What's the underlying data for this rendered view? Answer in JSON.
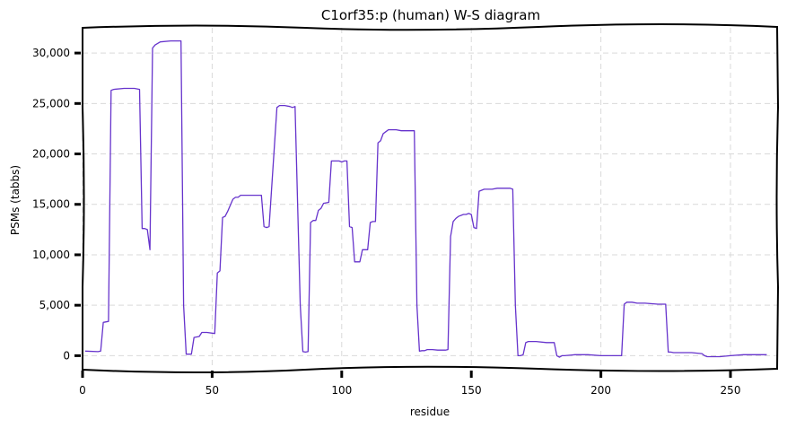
{
  "chart_data": {
    "type": "line",
    "title": "C1orf35:p (human) W-S diagram",
    "xlabel": "residue",
    "ylabel": "PSMs (tabbs)",
    "xlim": [
      0,
      268
    ],
    "ylim": [
      -1300,
      32500
    ],
    "xticks": [
      0,
      50,
      100,
      150,
      200,
      250
    ],
    "xtick_labels": [
      "0",
      "50",
      "100",
      "150",
      "200",
      "250"
    ],
    "yticks": [
      0,
      5000,
      10000,
      15000,
      20000,
      25000,
      30000
    ],
    "ytick_labels": [
      "0",
      "5,000",
      "10,000",
      "15,000",
      "20,000",
      "25,000",
      "30,000"
    ],
    "grid": true,
    "legend": "none",
    "color": "#6633cc",
    "series": [
      {
        "x": [
          1,
          6,
          7,
          8,
          10,
          11,
          12,
          16,
          20,
          22,
          23,
          24,
          25,
          26,
          27,
          28,
          30,
          34,
          37,
          38,
          39,
          40,
          41,
          42,
          43,
          45,
          46,
          48,
          51,
          52,
          53,
          54,
          55,
          56,
          58,
          59,
          60,
          61,
          65,
          69,
          70,
          71,
          72,
          75,
          76,
          77,
          78,
          80,
          81,
          82,
          84,
          85,
          86,
          87,
          88,
          89,
          90,
          91,
          92,
          93,
          95,
          96,
          97,
          98,
          99,
          100,
          101,
          102,
          103,
          104,
          105,
          106,
          107,
          108,
          109,
          110,
          111,
          112,
          113,
          114,
          115,
          116,
          117,
          118,
          119,
          121,
          123,
          124,
          126,
          128,
          129,
          130,
          131,
          132,
          133,
          135,
          137,
          139,
          140,
          141,
          142,
          143,
          144,
          145,
          147,
          148,
          149,
          150,
          151,
          152,
          153,
          155,
          158,
          160,
          163,
          165,
          166,
          167,
          168,
          169,
          170,
          171,
          172,
          175,
          179,
          182,
          183,
          184,
          185,
          186,
          190,
          195,
          200,
          205,
          208,
          209,
          210,
          211,
          212,
          214,
          217,
          222,
          225,
          226,
          227,
          228,
          231,
          235,
          239,
          240,
          241,
          242,
          246,
          250,
          255,
          260,
          264
        ],
        "y": [
          450,
          400,
          450,
          3300,
          3400,
          26300,
          26400,
          26500,
          26500,
          26400,
          12600,
          12600,
          12500,
          10500,
          30500,
          30800,
          31100,
          31200,
          31200,
          31200,
          5000,
          150,
          150,
          150,
          1800,
          1900,
          2300,
          2300,
          2200,
          8200,
          8400,
          13700,
          13800,
          14300,
          15500,
          15700,
          15700,
          15900,
          15900,
          15900,
          12800,
          12700,
          12800,
          24600,
          24800,
          24800,
          24800,
          24700,
          24600,
          24700,
          5000,
          400,
          350,
          400,
          13200,
          13400,
          13400,
          14400,
          14600,
          15100,
          15200,
          19300,
          19300,
          19300,
          19300,
          19200,
          19300,
          19300,
          12800,
          12700,
          9300,
          9300,
          9300,
          10500,
          10500,
          10500,
          13200,
          13300,
          13300,
          21100,
          21300,
          22000,
          22200,
          22400,
          22400,
          22400,
          22300,
          22300,
          22300,
          22300,
          5000,
          450,
          500,
          500,
          600,
          600,
          550,
          550,
          550,
          600,
          11800,
          13300,
          13600,
          13800,
          14000,
          14000,
          14100,
          14000,
          12700,
          12600,
          16300,
          16500,
          16500,
          16600,
          16600,
          16600,
          16500,
          5000,
          0,
          0,
          100,
          1300,
          1400,
          1400,
          1300,
          1300,
          0,
          -150,
          0,
          0,
          100,
          100,
          0,
          0,
          0,
          5100,
          5300,
          5300,
          5300,
          5200,
          5200,
          5100,
          5100,
          350,
          350,
          300,
          300,
          300,
          200,
          0,
          -100,
          -100,
          -100,
          0,
          100,
          100,
          100
        ]
      }
    ]
  }
}
